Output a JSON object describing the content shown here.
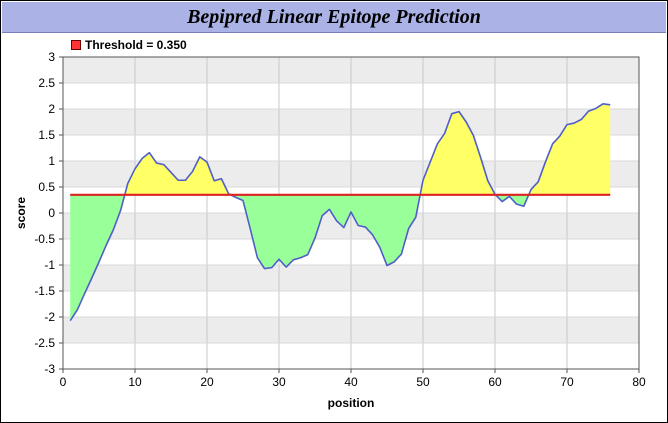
{
  "chart_data": {
    "type": "area",
    "title": "Bepipred Linear Epitope Prediction",
    "xlabel": "position",
    "ylabel": "score",
    "xlim": [
      0,
      80
    ],
    "ylim": [
      -3,
      3
    ],
    "x_ticks": [
      "0",
      "10",
      "20",
      "30",
      "40",
      "50",
      "60",
      "70",
      "80"
    ],
    "y_ticks": [
      "3",
      "2.5",
      "2",
      "1.5",
      "1",
      "0.5",
      "0",
      "-0.5",
      "-1",
      "-1.5",
      "-2",
      "-2.5",
      "-3"
    ],
    "grid": true,
    "threshold": {
      "label": "Threshold = 0.350",
      "value": 0.35,
      "color": "#dd2222"
    },
    "legend": {
      "position": "top-left"
    },
    "colors": {
      "line": "#4f5fc8",
      "above_fill": "#ffff66",
      "below_fill": "#99ff99",
      "band_fill": "#ececec",
      "title_bar": "#aab2e6"
    },
    "series": [
      {
        "x": [
          1,
          2,
          3,
          4,
          5,
          6,
          7,
          8,
          9,
          10,
          11,
          12,
          13,
          14,
          15,
          16,
          17,
          18,
          19,
          20,
          21,
          22,
          23,
          24,
          25,
          26,
          27,
          28,
          29,
          30,
          31,
          32,
          33,
          34,
          35,
          36,
          37,
          38,
          39,
          40,
          41,
          42,
          43,
          44,
          45,
          46,
          47,
          48,
          49,
          50,
          51,
          52,
          53,
          54,
          55,
          56,
          57,
          58,
          59,
          60,
          61,
          62,
          63,
          64,
          65,
          66,
          67,
          68,
          69,
          70,
          71,
          72,
          73,
          74,
          75,
          76
        ],
        "y": [
          -2.07,
          -1.86,
          -1.55,
          -1.25,
          -0.94,
          -0.62,
          -0.32,
          0.05,
          0.57,
          0.85,
          1.05,
          1.16,
          0.96,
          0.93,
          0.78,
          0.63,
          0.63,
          0.8,
          1.08,
          0.98,
          0.62,
          0.66,
          0.37,
          0.3,
          0.24,
          -0.3,
          -0.86,
          -1.07,
          -1.05,
          -0.89,
          -1.04,
          -0.9,
          -0.86,
          -0.8,
          -0.48,
          -0.05,
          0.07,
          -0.15,
          -0.28,
          0.02,
          -0.24,
          -0.27,
          -0.42,
          -0.66,
          -1.01,
          -0.94,
          -0.79,
          -0.3,
          -0.08,
          0.63,
          0.98,
          1.33,
          1.53,
          1.91,
          1.95,
          1.75,
          1.49,
          1.07,
          0.62,
          0.36,
          0.22,
          0.32,
          0.17,
          0.13,
          0.45,
          0.6,
          0.98,
          1.33,
          1.48,
          1.7,
          1.73,
          1.8,
          1.96,
          2.01,
          2.1,
          2.08
        ]
      }
    ]
  }
}
